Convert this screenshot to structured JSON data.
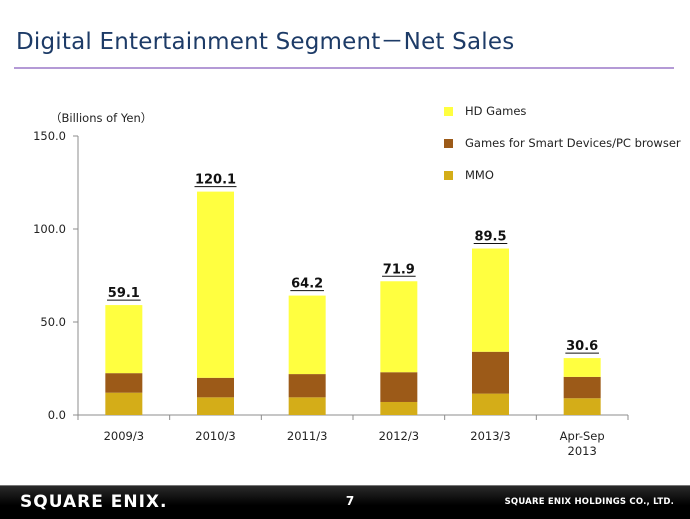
{
  "slide": {
    "title": "Digital Entertainment Segment－Net Sales"
  },
  "footer": {
    "logo": "SQUARE ENIX.",
    "page_number": "7",
    "company": "SQUARE ENIX HOLDINGS CO., LTD."
  },
  "chart_data": {
    "type": "bar",
    "stacked": true,
    "units_label": "（Billions of Yen）",
    "categories": [
      "2009/3",
      "2010/3",
      "2011/3",
      "2012/3",
      "2013/3",
      "Apr-Sep 2013"
    ],
    "category_lines": [
      [
        "2009/3"
      ],
      [
        "2010/3"
      ],
      [
        "2011/3"
      ],
      [
        "2012/3"
      ],
      [
        "2013/3"
      ],
      [
        "Apr-Sep",
        "2013"
      ]
    ],
    "series": [
      {
        "name": "MMO",
        "color": "#d4ad18",
        "values": [
          12.0,
          9.5,
          9.5,
          7.0,
          11.5,
          9.0
        ]
      },
      {
        "name": "Games for Smart Devices/PC browser",
        "color": "#9c5a18",
        "values": [
          10.5,
          10.5,
          12.5,
          16.0,
          22.5,
          11.5
        ]
      },
      {
        "name": "HD Games",
        "color": "#ffff40",
        "values": [
          36.6,
          100.1,
          42.2,
          48.9,
          55.5,
          10.1
        ]
      }
    ],
    "legend_order": [
      "HD Games",
      "Games for Smart Devices/PC browser",
      "MMO"
    ],
    "totals": [
      59.1,
      120.1,
      64.2,
      71.9,
      89.5,
      30.6
    ],
    "total_labels": [
      "59.1",
      "120.1",
      "64.2",
      "71.9",
      "89.5",
      "30.6"
    ],
    "ylim": [
      0,
      150
    ],
    "yticks": [
      0,
      50,
      100,
      150
    ],
    "ytick_labels": [
      "0.0",
      "50.0",
      "100.0",
      "150.0"
    ],
    "grid": false,
    "legend_position": "top-right"
  }
}
